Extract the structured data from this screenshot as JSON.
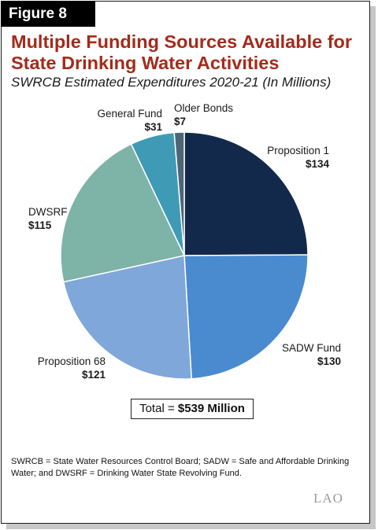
{
  "figure_label": "Figure 8",
  "title": "Multiple Funding Sources Available for State Drinking Water Activities",
  "subtitle": "SWRCB Estimated Expenditures 2020-21 (In Millions)",
  "chart_data": {
    "type": "pie",
    "title": "Multiple Funding Sources Available for State Drinking Water Activities",
    "subtitle": "SWRCB Estimated Expenditures 2020-21 (In Millions)",
    "slices": [
      {
        "name": "Proposition 1",
        "value": 134,
        "value_label": "$134",
        "color": "#13294b"
      },
      {
        "name": "SADW Fund",
        "value": 130,
        "value_label": "$130",
        "color": "#4a8bcf"
      },
      {
        "name": "Proposition 68",
        "value": 121,
        "value_label": "$121",
        "color": "#80a7d9"
      },
      {
        "name": "DWSRF",
        "value": 115,
        "value_label": "$115",
        "color": "#7eb3a8"
      },
      {
        "name": "General Fund",
        "value": 31,
        "value_label": "$31",
        "color": "#3f9bb5"
      },
      {
        "name": "Older Bonds",
        "value": 7,
        "value_label": "$7",
        "color": "#4d6675"
      }
    ]
  },
  "total": {
    "prefix": "Total = ",
    "value": "$539 Million"
  },
  "footnote": "SWRCB = State Water Resources Control Board; SADW = Safe and Affordable Drinking Water; and DWSRF = Drinking Water State Revolving Fund.",
  "logo_text": "LAO"
}
